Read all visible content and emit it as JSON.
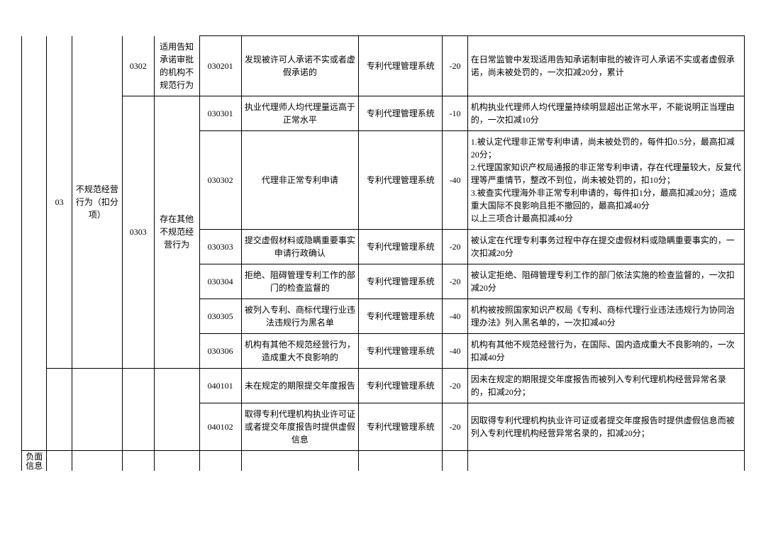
{
  "colA": "负面信息",
  "groups": {
    "g03": {
      "code": "03",
      "label": "不规范经营行为（扣分项）",
      "sub": {
        "s0302": {
          "code": "0302",
          "label": "适用告知承诺审批的机构不规范行为",
          "rows": [
            {
              "code": "030201",
              "item": "发现被许可人承诺不实或者虚假承诺的",
              "source": "专利代理管理系统",
              "score": "-20",
              "remark": "在日常监管中发现适用告知承诺制审批的被许可人承诺不实或者虚假承诺，尚未被处罚的，一次扣减20分，累计"
            }
          ]
        },
        "s0303": {
          "code": "0303",
          "label": "存在其他不规范经营行为",
          "rows": [
            {
              "code": "030301",
              "item": "执业代理师人均代理量远高于正常水平",
              "source": "专利代理管理系统",
              "score": "-10",
              "remark": "机构执业代理师人均代理量持续明显超出正常水平，不能说明正当理由的，一次扣减10分"
            },
            {
              "code": "030302",
              "item": "代理非正常专利申请",
              "source": "专利代理管理系统",
              "score": "-40",
              "remark": "1.被认定代理非正常专利申请，尚未被处罚的，每件扣0.5分，最高扣减20分；\n2.代理国家知识产权局通报的非正常专利申请，存在代理量较大，反复代理等严重情节，整改不到位，尚未被处罚的，扣10分；\n3.被查实代理海外非正常专利申请的，每件扣1分，最高扣减20分；造成重大国际不良影响且拒不撤回的，最高扣减40分\n以上三项合计最高扣减40分"
            },
            {
              "code": "030303",
              "item": "提交虚假材料或隐瞒重要事实申请行政确认",
              "source": "专利代理管理系统",
              "score": "-20",
              "remark": "被认定在代理专利事务过程中存在提交虚假材料或隐瞒重要事实的，一次扣减20分"
            },
            {
              "code": "030304",
              "item": "拒绝、阻碍管理专利工作的部门的检查监督的",
              "source": "专利代理管理系统",
              "score": "-20",
              "remark": "被认定拒绝、阻碍管理专利工作的部门依法实施的检查监督的，一次扣减20分"
            },
            {
              "code": "030305",
              "item": "被列入专利、商标代理行业违法违规行为黑名单",
              "source": "专利代理管理系统",
              "score": "-40",
              "remark": "机构被按照国家知识产权局《专利、商标代理行业违法违规行为协同治理办法》列入黑名单的，一次扣减40分"
            },
            {
              "code": "030306",
              "item": "机构有其他不规范经营行为，造成重大不良影响的",
              "source": "专利代理管理系统",
              "score": "-40",
              "remark": "机构有其他不规范经营行为，在国际、国内造成重大不良影响的，一次扣减40分"
            }
          ]
        }
      }
    },
    "g04": {
      "rows": [
        {
          "code": "040101",
          "item": "未在规定的期限提交年度报告",
          "source": "专利代理管理系统",
          "score": "-20",
          "remark": "因未在规定的期限提交年度报告而被列入专利代理机构经营异常名录的，扣减20分；"
        },
        {
          "code": "040102",
          "item": "取得专利代理机构执业许可证或者提交年度报告时提供虚假信息",
          "source": "专利代理管理系统",
          "score": "-20",
          "remark": "因取得专利代理机构执业许可证或者提交年度报告时提供虚假信息而被列入专利代理机构经营异常名录的，扣减20分；"
        }
      ]
    }
  }
}
